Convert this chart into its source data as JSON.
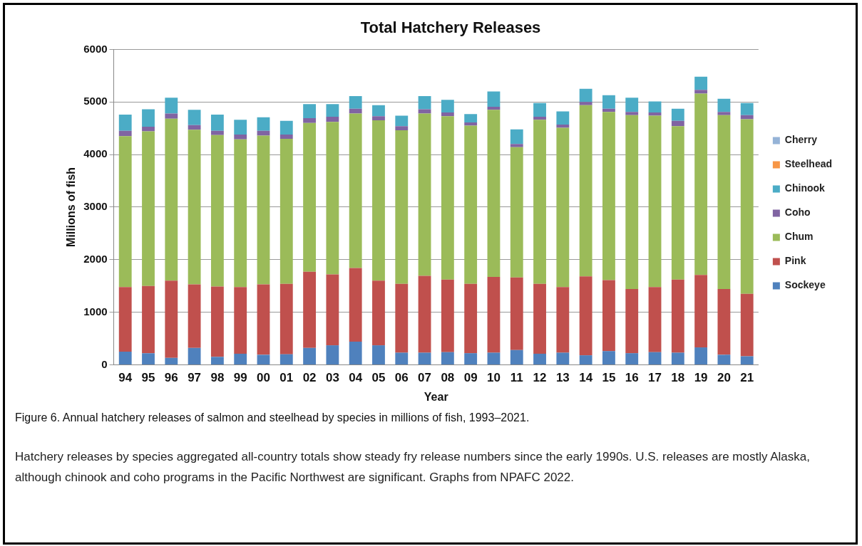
{
  "chart_data": {
    "type": "bar",
    "title": "Total Hatchery Releases",
    "xlabel": "Year",
    "ylabel": "Millions of fish",
    "categories": [
      "94",
      "95",
      "96",
      "97",
      "98",
      "99",
      "00",
      "01",
      "02",
      "03",
      "04",
      "05",
      "06",
      "07",
      "08",
      "09",
      "10",
      "11",
      "12",
      "13",
      "14",
      "15",
      "16",
      "17",
      "18",
      "19",
      "20",
      "21"
    ],
    "stacked": true,
    "ylim": [
      0,
      6000
    ],
    "yticks": [
      0,
      1000,
      2000,
      3000,
      4000,
      5000,
      6000
    ],
    "grid": "y",
    "legend": "right",
    "series": [
      {
        "name": "Sockeye",
        "color": "#4f81bd",
        "values": [
          250,
          220,
          130,
          320,
          150,
          210,
          190,
          200,
          320,
          370,
          440,
          370,
          230,
          230,
          240,
          220,
          230,
          280,
          210,
          230,
          180,
          260,
          220,
          240,
          230,
          330,
          190,
          160
        ]
      },
      {
        "name": "Pink",
        "color": "#c0504d",
        "values": [
          1230,
          1280,
          1470,
          1210,
          1340,
          1270,
          1340,
          1340,
          1450,
          1350,
          1400,
          1230,
          1310,
          1460,
          1380,
          1320,
          1440,
          1380,
          1330,
          1250,
          1500,
          1350,
          1220,
          1240,
          1390,
          1380,
          1250,
          1190
        ]
      },
      {
        "name": "Chum",
        "color": "#9bbb59",
        "values": [
          2870,
          2940,
          3080,
          2940,
          2880,
          2810,
          2830,
          2760,
          2830,
          2900,
          2940,
          3050,
          2920,
          3090,
          3110,
          3010,
          3180,
          2480,
          3120,
          3030,
          3260,
          3200,
          3310,
          3260,
          2920,
          3450,
          3310,
          3320
        ]
      },
      {
        "name": "Coho",
        "color": "#8064a2",
        "values": [
          100,
          90,
          100,
          90,
          80,
          90,
          90,
          80,
          90,
          100,
          90,
          80,
          80,
          80,
          70,
          60,
          60,
          60,
          60,
          60,
          60,
          60,
          60,
          60,
          100,
          70,
          60,
          80
        ]
      },
      {
        "name": "Chinook",
        "color": "#4bacc6",
        "values": [
          310,
          330,
          300,
          290,
          310,
          280,
          260,
          260,
          270,
          240,
          240,
          210,
          200,
          250,
          240,
          160,
          290,
          280,
          260,
          250,
          250,
          260,
          270,
          210,
          230,
          250,
          250,
          230
        ]
      },
      {
        "name": "Steelhead",
        "color": "#f79646",
        "values": [
          null,
          null,
          null,
          null,
          null,
          null,
          null,
          null,
          null,
          null,
          null,
          null,
          null,
          null,
          null,
          null,
          null,
          null,
          null,
          null,
          null,
          null,
          null,
          null,
          null,
          null,
          null,
          null
        ]
      },
      {
        "name": "Cherry",
        "color": "#95b3d7",
        "values": [
          null,
          null,
          null,
          null,
          null,
          null,
          null,
          null,
          null,
          null,
          null,
          null,
          null,
          null,
          null,
          null,
          null,
          null,
          null,
          null,
          null,
          null,
          null,
          null,
          null,
          null,
          null,
          null
        ]
      }
    ],
    "annotations": [
      "Figure 6. Annual hatchery releases of salmon and steelhead by species in millions of fish, 1993–2021.",
      "Hatchery releases by species aggregated all-country totals show steady fry release numbers since the early 1990s. U.S. releases are mostly Alaska, although chinook and coho programs in the Pacific Northwest are significant. Graphs from NPAFC 2022."
    ]
  }
}
